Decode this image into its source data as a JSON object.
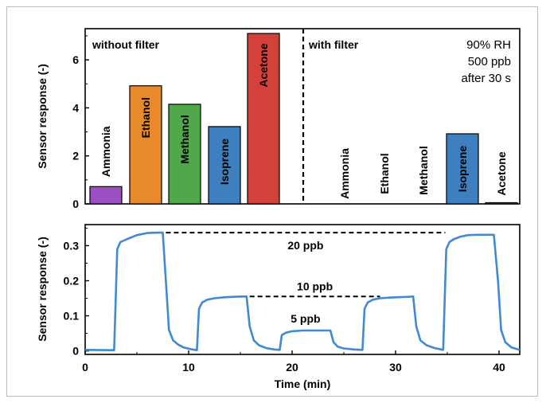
{
  "chart_data": [
    {
      "type": "bar",
      "ylabel": "Sensor response (-)",
      "ylim": [
        0,
        7.3
      ],
      "yticks": [
        "0",
        "2",
        "4",
        "6"
      ],
      "annotation": [
        "90% RH",
        "500 ppb",
        "after 30 s"
      ],
      "groups": [
        {
          "name": "without filter",
          "categories": [
            "Ammonia",
            "Ethanol",
            "Methanol",
            "Isoprene",
            "Acetone"
          ],
          "values": [
            0.72,
            4.92,
            4.15,
            3.22,
            7.1
          ]
        },
        {
          "name": "with filter",
          "categories": [
            "Ammonia",
            "Ethanol",
            "Methanol",
            "Isoprene",
            "Acetone"
          ],
          "values": [
            0.0,
            0.0,
            0.0,
            2.92,
            0.05
          ]
        }
      ],
      "colors": [
        "#9b4fc2",
        "#e88a2c",
        "#4fa94a",
        "#3d7fbf",
        "#d4403a"
      ]
    },
    {
      "type": "line",
      "xlabel": "Time (min)",
      "ylabel": "Sensor response (-)",
      "xlim": [
        0,
        42
      ],
      "ylim": [
        -0.01,
        0.36
      ],
      "xticks": [
        "0",
        "10",
        "20",
        "30",
        "40"
      ],
      "yticks": [
        "0",
        "0.1",
        "0.2",
        "0.3"
      ],
      "color": "#3f8ad0",
      "series": [
        {
          "x": [
            0,
            2.8,
            3.1,
            3.4,
            4.0,
            5.0,
            6.0,
            7.0,
            7.5,
            7.8,
            8.1,
            8.5,
            9.0,
            9.5,
            10.2,
            10.8,
            11.0,
            11.3,
            11.8,
            12.5,
            13.5,
            15.0,
            15.6,
            15.9,
            16.3,
            16.8,
            17.5,
            18.3,
            18.8,
            19.0,
            19.4,
            20.0,
            21.0,
            22.5,
            23.7,
            24.0,
            24.4,
            25.0,
            26.0,
            26.8,
            27.0,
            27.3,
            27.8,
            28.5,
            29.5,
            31.0,
            31.7,
            32.0,
            32.4,
            33.0,
            33.8,
            34.6,
            34.9,
            35.2,
            35.6,
            36.2,
            37.0,
            38.0,
            39.5,
            39.9,
            40.2,
            40.6,
            41.2,
            42.0
          ],
          "y": [
            0.003,
            0.002,
            0.29,
            0.31,
            0.318,
            0.33,
            0.336,
            0.337,
            0.337,
            0.2,
            0.06,
            0.03,
            0.018,
            0.01,
            0.005,
            0.002,
            0.12,
            0.138,
            0.146,
            0.15,
            0.153,
            0.155,
            0.155,
            0.07,
            0.03,
            0.016,
            0.008,
            0.004,
            0.003,
            0.045,
            0.052,
            0.056,
            0.058,
            0.058,
            0.058,
            0.025,
            0.012,
            0.007,
            0.004,
            0.003,
            0.12,
            0.138,
            0.146,
            0.15,
            0.152,
            0.154,
            0.155,
            0.07,
            0.03,
            0.016,
            0.008,
            0.003,
            0.29,
            0.31,
            0.318,
            0.325,
            0.33,
            0.331,
            0.331,
            0.2,
            0.06,
            0.025,
            0.01,
            0.003
          ]
        }
      ],
      "annotations": [
        {
          "text": "20 ppb",
          "x_start": 7.8,
          "x_end": 34.8,
          "y": 0.337
        },
        {
          "text": "10 ppb",
          "x_start": 15.9,
          "x_end": 28.5,
          "y": 0.155
        },
        {
          "text": "5 ppb",
          "x": 21.3,
          "y": 0.058
        }
      ]
    }
  ]
}
